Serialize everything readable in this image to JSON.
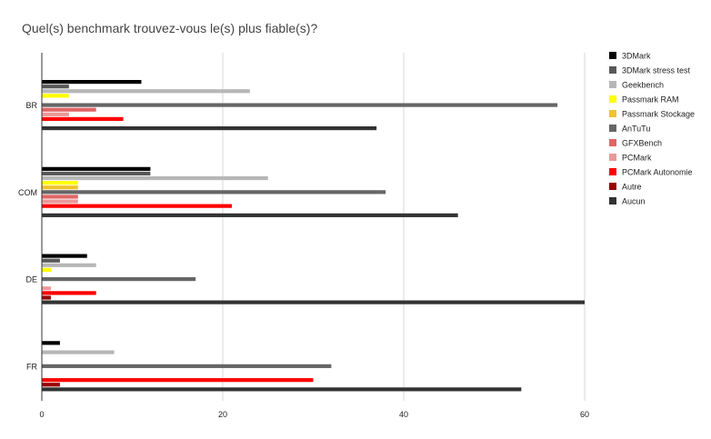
{
  "chart_data": {
    "type": "bar",
    "orientation": "horizontal",
    "title": "Quel(s) benchmark trouvez-vous le(s) plus fiable(s)?",
    "xlabel": "",
    "ylabel": "",
    "xlim": [
      0,
      60
    ],
    "xticks": [
      0,
      20,
      40,
      60
    ],
    "grid": true,
    "legend_position": "right",
    "categories": [
      "BR",
      "COM",
      "DE",
      "FR"
    ],
    "series": [
      {
        "name": "3DMark",
        "color": "#000000",
        "values": [
          11,
          12,
          5,
          2
        ]
      },
      {
        "name": "3DMark stress test",
        "color": "#595959",
        "values": [
          3,
          12,
          2,
          0
        ]
      },
      {
        "name": "Geekbench",
        "color": "#b7b7b7",
        "values": [
          23,
          25,
          6,
          8
        ]
      },
      {
        "name": "Passmark RAM",
        "color": "#ffff00",
        "values": [
          3,
          4,
          1,
          0
        ]
      },
      {
        "name": "Passmark Stockage",
        "color": "#f1c232",
        "values": [
          0,
          4,
          0,
          0
        ]
      },
      {
        "name": "AnTuTu",
        "color": "#666666",
        "values": [
          57,
          38,
          17,
          32
        ]
      },
      {
        "name": "GFXBench",
        "color": "#e06666",
        "values": [
          6,
          4,
          0,
          0
        ]
      },
      {
        "name": "PCMark",
        "color": "#ea9999",
        "values": [
          3,
          4,
          1,
          0
        ]
      },
      {
        "name": "PCMark Autonomie",
        "color": "#ff0000",
        "values": [
          9,
          21,
          6,
          30
        ]
      },
      {
        "name": "Autre",
        "color": "#990000",
        "values": [
          0,
          0,
          1,
          2
        ]
      },
      {
        "name": "Aucun",
        "color": "#333333",
        "values": [
          37,
          46,
          60,
          53
        ]
      }
    ]
  }
}
